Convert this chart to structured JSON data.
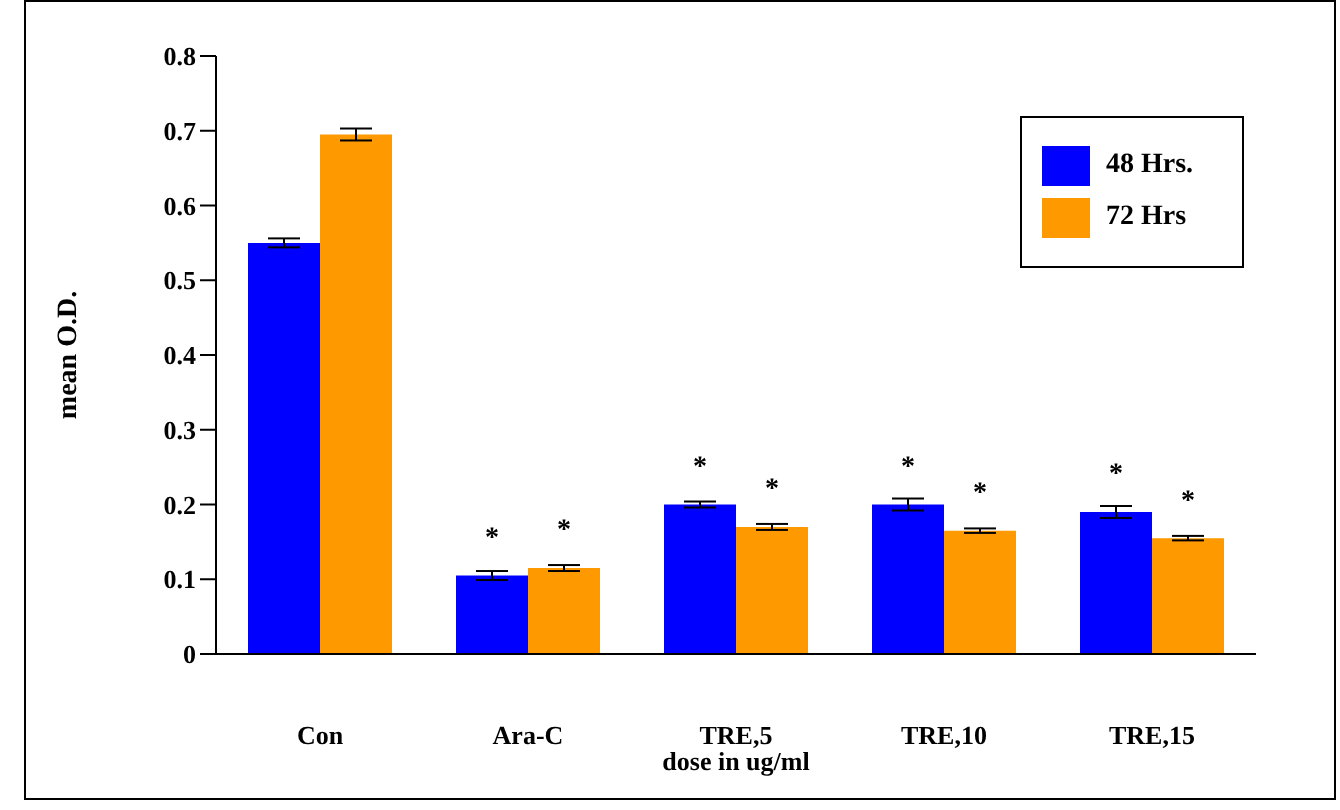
{
  "chart_data": {
    "type": "bar",
    "xlabel": "dose in ug/ml",
    "ylabel": "mean O.D.",
    "categories": [
      "Con",
      "Ara-C",
      "TRE,5",
      "TRE,10",
      "TRE,15"
    ],
    "series": [
      {
        "name": "48 Hrs.",
        "color": "#0000ff",
        "values": [
          0.55,
          0.105,
          0.2,
          0.2,
          0.19
        ],
        "errors": [
          0.006,
          0.006,
          0.004,
          0.008,
          0.008
        ]
      },
      {
        "name": "72 Hrs",
        "color": "#ff9900",
        "values": [
          0.695,
          0.115,
          0.17,
          0.165,
          0.155
        ],
        "errors": [
          0.008,
          0.004,
          0.004,
          0.003,
          0.003
        ]
      }
    ],
    "ylim": [
      0,
      0.8
    ],
    "yticks": [
      {
        "value": 0,
        "label": "0"
      },
      0.1,
      0.2,
      0.3,
      0.4,
      0.5,
      0.6,
      0.7,
      0.8
    ],
    "annotations": [
      {
        "text": "*",
        "x": "Ara-C",
        "y": 0.105
      },
      {
        "text": "*",
        "x": "Ara-C",
        "y": 0.115
      },
      {
        "text": "*",
        "x": "TRE,5",
        "y": 0.2
      },
      {
        "text": "*",
        "x": "TRE,5",
        "y": 0.17
      },
      {
        "text": "*",
        "x": "TRE,10",
        "y": 0.2
      },
      {
        "text": "*",
        "x": "TRE,10",
        "y": 0.165
      },
      {
        "text": "*",
        "x": "TRE,15",
        "y": 0.19
      },
      {
        "text": "*",
        "x": "TRE,15",
        "y": 0.155
      }
    ],
    "legend": "top right",
    "grid": false
  }
}
